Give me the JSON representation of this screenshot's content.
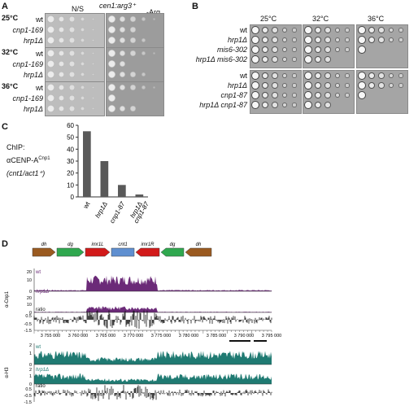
{
  "panelA": {
    "label": "A",
    "header_ns": "N/S",
    "header_cen": "cen1:arg3⁺",
    "header_arg": "-Arg",
    "groups": [
      {
        "temp": "25°C",
        "strains": [
          "wt",
          "cnp1-169",
          "hrp1Δ"
        ]
      },
      {
        "temp": "32°C",
        "strains": [
          "wt",
          "cnp1-169",
          "hrp1Δ"
        ]
      },
      {
        "temp": "36°C",
        "strains": [
          "wt",
          "cnp1-169",
          "hrp1Δ"
        ]
      }
    ]
  },
  "panelB": {
    "label": "B",
    "temps": [
      "25°C",
      "32°C",
      "36°C"
    ],
    "top_strains": [
      "wt",
      "hrp1Δ",
      "mis6-302",
      "hrp1Δ mis6-302"
    ],
    "bottom_strains": [
      "wt",
      "hrp1Δ",
      "cnp1-87",
      "hrp1Δ cnp1-87"
    ]
  },
  "panelC": {
    "label": "C",
    "ylabel_line1": "ChIP:",
    "ylabel_line2": "αCENP-A",
    "ylabel_sup": "Cnp1",
    "ylabel_line3": "(cnt1/act1⁺)"
  },
  "chart_data": {
    "type": "bar",
    "categories": [
      "wt",
      "hrp1Δ",
      "cnp1-87",
      "hrp1Δ cnp1-87"
    ],
    "values": [
      55,
      30,
      10,
      2
    ],
    "ylim": [
      0,
      60
    ],
    "yticks": [
      "0",
      "10",
      "20",
      "30",
      "40",
      "50",
      "60"
    ],
    "bar_color": "#595959"
  },
  "panelD": {
    "label": "D",
    "elements": [
      "dh",
      "dg",
      "imr1L",
      "cnt1",
      "imr1R",
      "dg",
      "dh"
    ],
    "track_top_axis": "α-Cnp1",
    "track_bottom_axis": "α-H3",
    "wt_label": "wt",
    "hrp_label": "hrp1Δ",
    "ratio_label": "ratio",
    "top_ticks": [
      "20",
      "10",
      "0",
      "20",
      "10",
      "0",
      "0.5",
      "-0.5",
      "-1.5"
    ],
    "bottom_ticks": [
      "2",
      "1",
      "0",
      "2",
      "1",
      "0",
      "0.5",
      "-0.5",
      "-1.5"
    ],
    "coords": [
      "3 755 000",
      "3 760 000",
      "3 765 000",
      "3 770 000",
      "3 775 000",
      "3 780 000",
      "3 785 000",
      "3 790 000",
      "3 795 000"
    ],
    "cnp1_color": "#6b2a78",
    "h3_color": "#1f7a72"
  }
}
